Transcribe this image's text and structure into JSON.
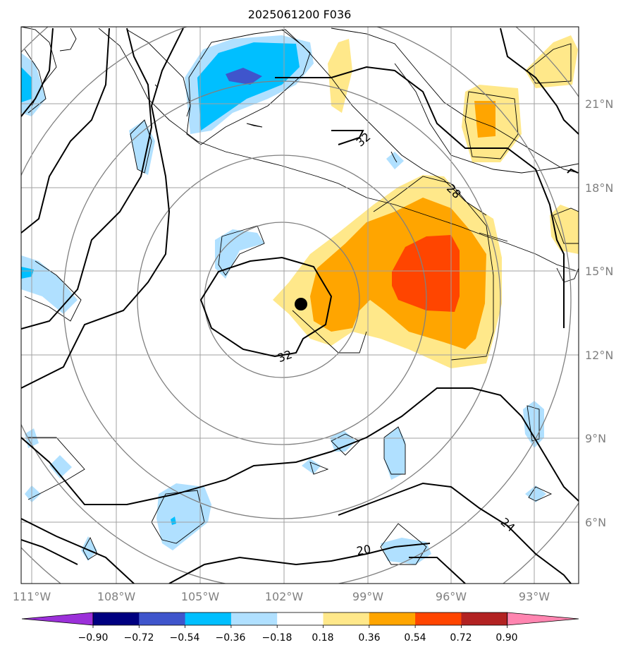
{
  "title": "2025061200 F036",
  "map": {
    "lon_range": [
      -111.0,
      -91.5
    ],
    "lat_range": [
      3.5,
      23.5
    ],
    "lon_ticks": [
      "111°W",
      "108°W",
      "105°W",
      "102°W",
      "99°W",
      "96°W",
      "93°W"
    ],
    "lat_ticks": [
      "21°N",
      "18°N",
      "15°N",
      "12°N",
      "9°N",
      "6°N"
    ],
    "grid": true,
    "storm_center": {
      "lon": -101.5,
      "lat": 13.8
    },
    "range_rings": "concentric circles around storm center",
    "contour_labels": [
      "32",
      "28",
      "32",
      "20",
      "24"
    ]
  },
  "colorbar": {
    "ticks": [
      "−0.90",
      "−0.72",
      "−0.54",
      "−0.36",
      "−0.18",
      "0.18",
      "0.36",
      "0.54",
      "0.72",
      "0.90"
    ],
    "colors": [
      "#9b30d9",
      "#000080",
      "#3f55cc",
      "#00bfff",
      "#b0e0ff",
      "#ffffff",
      "#ffe88a",
      "#ffa500",
      "#ff4500",
      "#b22222",
      "#ff85b0"
    ],
    "extend": "both"
  }
}
